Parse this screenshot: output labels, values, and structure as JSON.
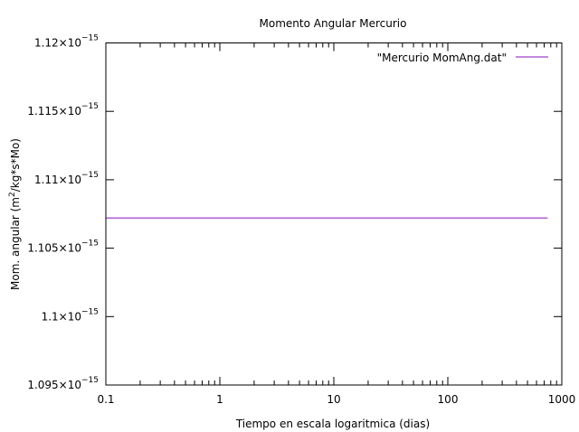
{
  "chart_data": {
    "type": "line",
    "title": "Momento Angular Mercurio",
    "xlabel": "Tiempo en escala logaritmica (dias)",
    "ylabel": {
      "pre": "Mom. angular (m",
      "sup": "2",
      "post": "/kg*s*Mo)"
    },
    "x_scale": "log",
    "xlim": [
      0.1,
      1000
    ],
    "ylim": [
      1.095e-15,
      1.12e-15
    ],
    "x_ticks": [
      {
        "value": 0.1,
        "label": "0.1"
      },
      {
        "value": 1,
        "label": "1"
      },
      {
        "value": 10,
        "label": "10"
      },
      {
        "value": 100,
        "label": "100"
      },
      {
        "value": 1000,
        "label": "1000"
      }
    ],
    "y_ticks": [
      {
        "value": 1.095e-15,
        "mantissa": "1.095×10",
        "exp": "−15"
      },
      {
        "value": 1.1e-15,
        "mantissa": "1.1×10",
        "exp": "−15"
      },
      {
        "value": 1.105e-15,
        "mantissa": "1.105×10",
        "exp": "−15"
      },
      {
        "value": 1.11e-15,
        "mantissa": "1.11×10",
        "exp": "−15"
      },
      {
        "value": 1.115e-15,
        "mantissa": "1.115×10",
        "exp": "−15"
      },
      {
        "value": 1.12e-15,
        "mantissa": "1.12×10",
        "exp": "−15"
      }
    ],
    "grid": false,
    "legend_position": "top-right",
    "series": [
      {
        "name": "\"Mercurio MomAng.dat\"",
        "color": "#b25fd2",
        "x": [
          0.1,
          750
        ],
        "y": [
          1.1072e-15,
          1.1072e-15
        ]
      }
    ]
  }
}
